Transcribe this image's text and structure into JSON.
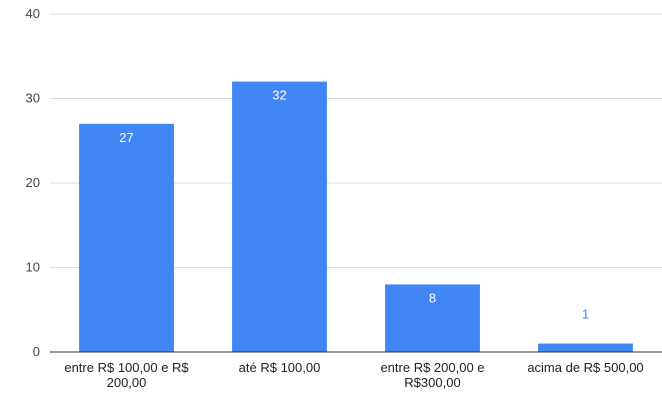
{
  "chart_data": {
    "type": "bar",
    "categories": [
      [
        "entre R$ 100,00 e R$",
        "200,00"
      ],
      [
        "até R$ 100,00"
      ],
      [
        "entre R$ 200,00 e",
        "R$300,00"
      ],
      [
        "acima de R$ 500,00"
      ]
    ],
    "values": [
      27,
      32,
      8,
      1
    ],
    "data_labels": [
      "27",
      "32",
      "8",
      "1"
    ],
    "ylim": [
      0,
      40
    ],
    "yticks": [
      "0",
      "10",
      "20",
      "30",
      "40"
    ],
    "grid": true,
    "legend": "none",
    "colors": {
      "bar": "#4285F4",
      "label_inside": "#ffffff",
      "label_outside": "#4285F4",
      "grid": "#dddddd",
      "axis": "#333333"
    }
  }
}
